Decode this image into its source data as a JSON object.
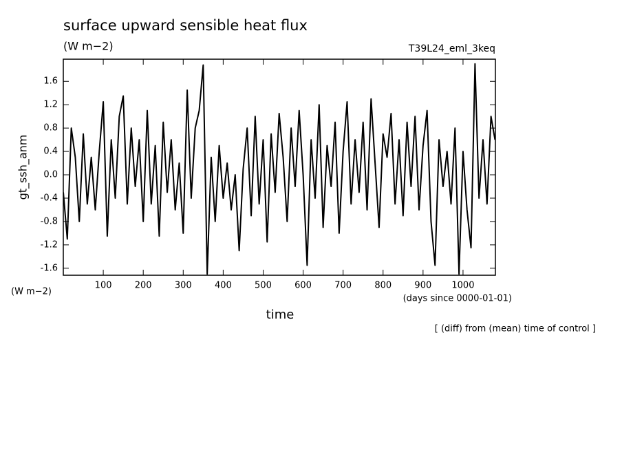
{
  "chart_data": {
    "type": "line",
    "title": "surface upward sensible heat flux",
    "units": "(W m−2)",
    "run_label": "T39L24_eml_3keq",
    "y_label": "gt_ssh_anm",
    "y_units": "(W m−2)",
    "x_units": "(days since 0000-01-01)",
    "x_label": "time",
    "note": "[ (diff) from (mean) time of control ]",
    "x": [
      0,
      10,
      20,
      30,
      40,
      50,
      60,
      70,
      80,
      90,
      100,
      110,
      120,
      130,
      140,
      150,
      160,
      170,
      180,
      190,
      200,
      210,
      220,
      230,
      240,
      250,
      260,
      270,
      280,
      290,
      300,
      310,
      320,
      330,
      340,
      350,
      360,
      370,
      380,
      390,
      400,
      410,
      420,
      430,
      440,
      450,
      460,
      470,
      480,
      490,
      500,
      510,
      520,
      530,
      540,
      550,
      560,
      570,
      580,
      590,
      600,
      610,
      620,
      630,
      640,
      650,
      660,
      670,
      680,
      690,
      700,
      710,
      720,
      730,
      740,
      750,
      760,
      770,
      780,
      790,
      800,
      810,
      820,
      830,
      840,
      850,
      860,
      870,
      880,
      890,
      900,
      910,
      920,
      930,
      940,
      950,
      960,
      970,
      980,
      990,
      1000,
      1010,
      1020,
      1030,
      1040,
      1050,
      1060,
      1070,
      1080
    ],
    "series": [
      {
        "color": "#000000",
        "values": [
          -0.3,
          -1.1,
          0.8,
          0.3,
          -0.8,
          0.7,
          -0.5,
          0.3,
          -0.6,
          0.4,
          1.25,
          -1.05,
          0.6,
          -0.4,
          1.0,
          1.35,
          -0.5,
          0.8,
          -0.2,
          0.6,
          -0.8,
          1.1,
          -0.5,
          0.5,
          -1.05,
          0.9,
          -0.3,
          0.6,
          -0.6,
          0.2,
          -1.0,
          1.45,
          -0.4,
          0.8,
          1.1,
          1.88,
          -1.7,
          0.3,
          -0.8,
          0.5,
          -0.4,
          0.2,
          -0.6,
          0.0,
          -1.3,
          0.1,
          0.8,
          -0.7,
          1.0,
          -0.5,
          0.6,
          -1.15,
          0.7,
          -0.3,
          1.05,
          0.3,
          -0.8,
          0.8,
          -0.2,
          1.1,
          0.0,
          -1.55,
          0.6,
          -0.4,
          1.2,
          -0.9,
          0.5,
          -0.2,
          0.9,
          -1.0,
          0.4,
          1.25,
          -0.5,
          0.6,
          -0.3,
          0.9,
          -0.6,
          1.3,
          0.2,
          -0.9,
          0.7,
          0.3,
          1.05,
          -0.5,
          0.6,
          -0.7,
          0.9,
          -0.2,
          1.0,
          -0.6,
          0.5,
          1.1,
          -0.8,
          -1.55,
          0.6,
          -0.2,
          0.4,
          -0.5,
          0.8,
          -1.7,
          0.4,
          -0.6,
          -1.25,
          1.9,
          -0.4,
          0.6,
          -0.5,
          1.0,
          0.6
        ]
      }
    ],
    "xlim": [
      0,
      1081
    ],
    "ylim": [
      -1.72,
      1.98
    ],
    "xticks": [
      100,
      200,
      300,
      400,
      500,
      600,
      700,
      800,
      900,
      1000
    ],
    "yticks": [
      1.6,
      1.2,
      0.8,
      0.4,
      {
        "value": 0,
        "label": "0.0"
      },
      -0.4,
      -0.8,
      -1.2,
      -1.6
    ]
  }
}
